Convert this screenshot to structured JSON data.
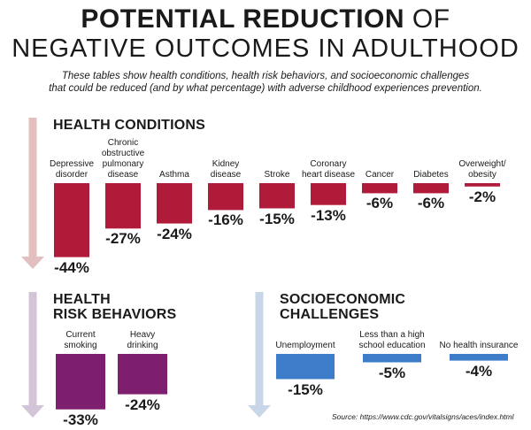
{
  "header": {
    "title_bold": "POTENTIAL REDUCTION",
    "title_rest": "OF",
    "title_line2": "NEGATIVE OUTCOMES IN ADULTHOOD",
    "subtitle_line1": "These tables show health conditions, health risk behaviors, and socioeconomic challenges",
    "subtitle_line2": "that could be reduced (and by what percentage) with adverse childhood experiences prevention."
  },
  "colors": {
    "health_conditions": "#b01b3a",
    "health_risk_behaviors": "#7d1f6e",
    "socioeconomic": "#3d7cc9",
    "arrow_health_conditions": "#e3bfbf",
    "arrow_health_risk_behaviors": "#d4c4d8",
    "arrow_socioeconomic": "#c9d6ea"
  },
  "footer": {
    "source": "Source: https://www.cdc.gov/vitalsigns/aces/index.html"
  },
  "chart_data": [
    {
      "type": "bar",
      "title": "HEALTH CONDITIONS",
      "categories": [
        "Depressive disorder",
        "Chronic obstructive pulmonary disease",
        "Asthma",
        "Kidney disease",
        "Stroke",
        "Coronary heart disease",
        "Cancer",
        "Diabetes",
        "Overweight/ obesity"
      ],
      "values": [
        -44,
        -27,
        -24,
        -16,
        -15,
        -13,
        -6,
        -6,
        -2
      ],
      "labels": [
        "-44%",
        "-27%",
        "-24%",
        "-16%",
        "-15%",
        "-13%",
        "-6%",
        "-6%",
        "-2%"
      ]
    },
    {
      "type": "bar",
      "title": "HEALTH RISK BEHAVIORS",
      "categories": [
        "Current smoking",
        "Heavy drinking"
      ],
      "values": [
        -33,
        -24
      ],
      "labels": [
        "-33%",
        "-24%"
      ]
    },
    {
      "type": "bar",
      "title": "SOCIOECONOMIC CHALLENGES",
      "categories": [
        "Unemployment",
        "Less than a high school education",
        "No health insurance"
      ],
      "values": [
        -15,
        -5,
        -4
      ],
      "labels": [
        "-15%",
        "-5%",
        "-4%"
      ]
    }
  ]
}
